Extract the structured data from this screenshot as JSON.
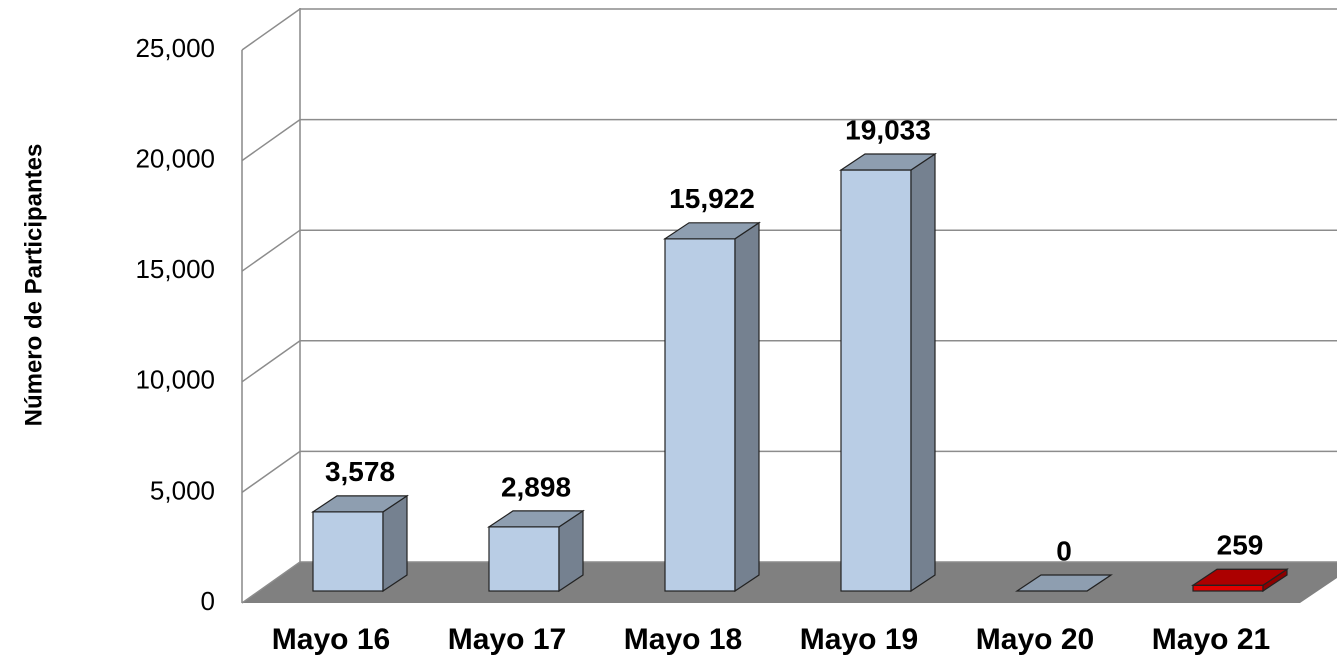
{
  "chart_data": {
    "type": "bar3d",
    "y_axis_label": "Número de Participantes",
    "categories": [
      "Mayo 16",
      "Mayo 17",
      "Mayo 18",
      "Mayo 19",
      "Mayo 20",
      "Mayo 21"
    ],
    "values": [
      3578,
      2898,
      15922,
      19033,
      0,
      259
    ],
    "value_labels": [
      "3,578",
      "2,898",
      "15,922",
      "19,033",
      "0",
      "259"
    ],
    "colors": [
      "#b9cde5",
      "#b9cde5",
      "#b9cde5",
      "#b9cde5",
      "#b9cde5",
      "#e00000"
    ],
    "ylim": [
      0,
      25000
    ],
    "yticks": [
      0,
      {
        "value": 5000,
        "label": "5,000"
      },
      {
        "value": 10000,
        "label": "10,000"
      },
      {
        "value": 15000,
        "label": "15,000"
      },
      {
        "value": 20000,
        "label": "20,000"
      },
      {
        "value": 25000,
        "label": "25,000"
      }
    ],
    "grid": true
  }
}
